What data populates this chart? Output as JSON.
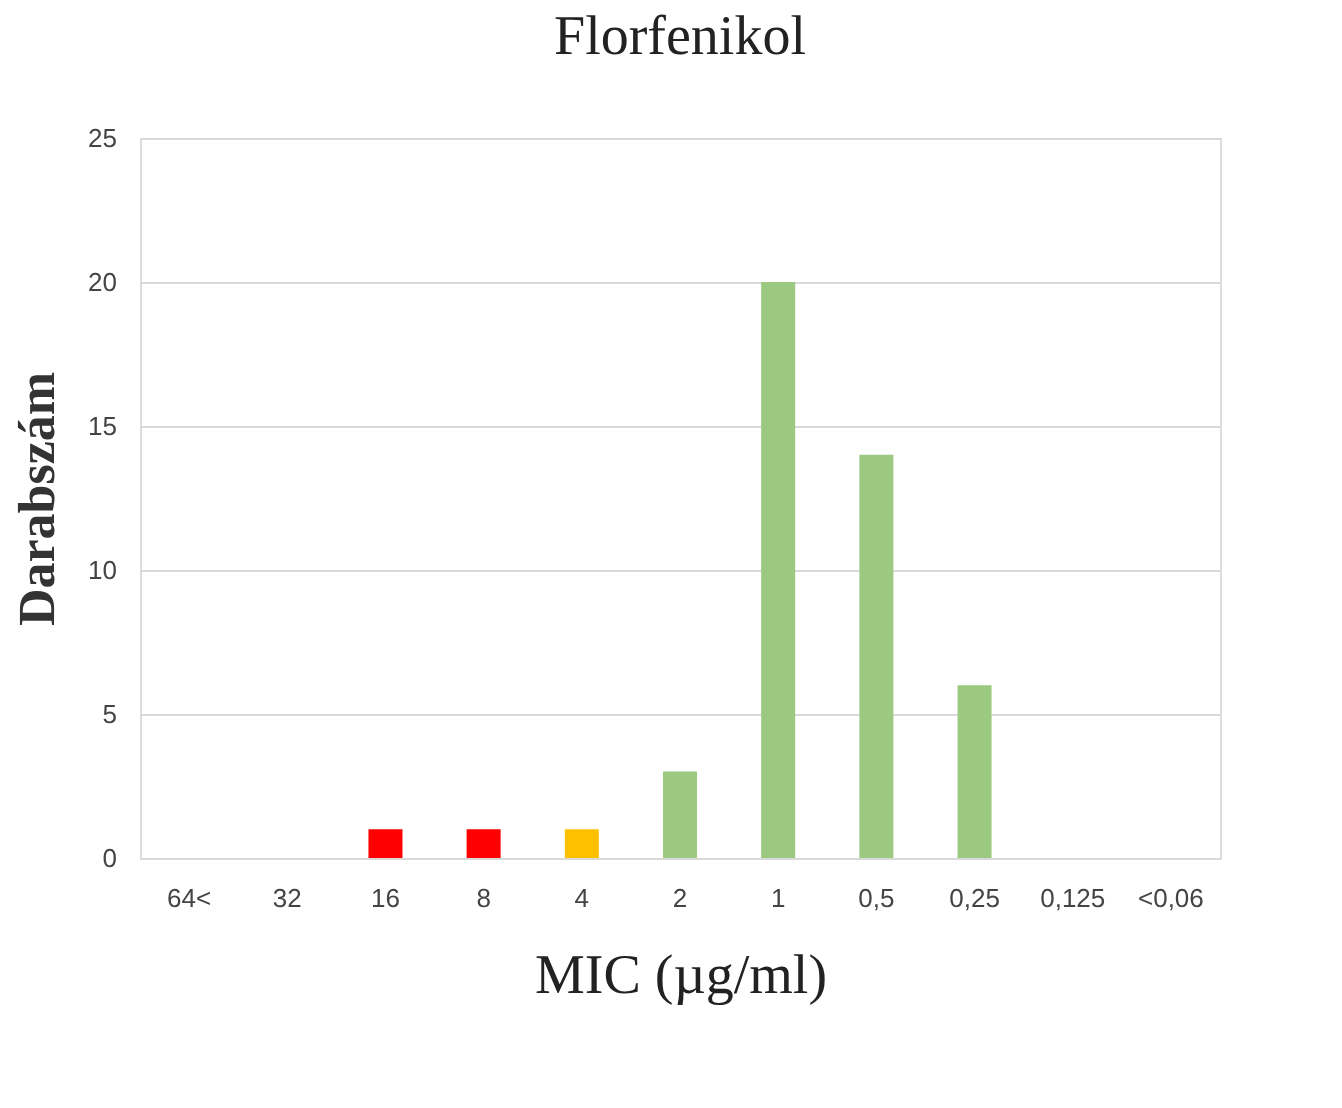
{
  "chart_data": {
    "type": "bar",
    "title": "Florfenikol",
    "xlabel": "MIC (µg/ml)",
    "ylabel": "Darabszám",
    "categories": [
      "64<",
      "32",
      "16",
      "8",
      "4",
      "2",
      "1",
      "0,5",
      "0,25",
      "0,125",
      "<0,06"
    ],
    "values": [
      0,
      0,
      1,
      1,
      1,
      3,
      20,
      14,
      6,
      0,
      0
    ],
    "colors": [
      "#9bc97f",
      "#9bc97f",
      "#ff0000",
      "#ff0000",
      "#ffc000",
      "#9bc97f",
      "#9bc97f",
      "#9bc97f",
      "#9bc97f",
      "#9bc97f",
      "#9bc97f"
    ],
    "ylim": [
      0,
      25
    ],
    "yticks": [
      0,
      5,
      10,
      15,
      20,
      25
    ],
    "grid": "y"
  }
}
